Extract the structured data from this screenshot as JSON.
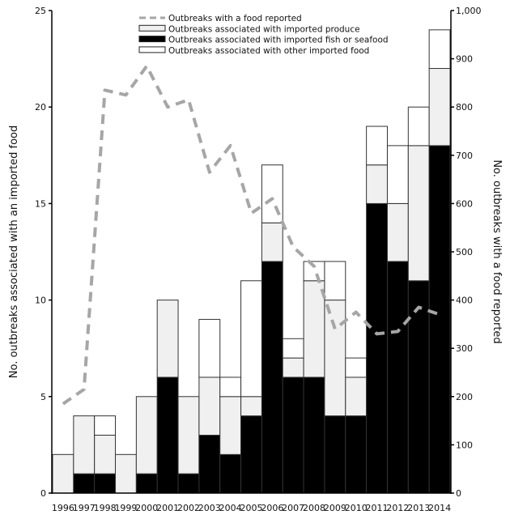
{
  "chart_data": {
    "type": "bar",
    "stacked": true,
    "title": "",
    "xlabel": "",
    "ylabel": "No. outbreaks associated with an imported food",
    "y2label": "No. outbreaks with a food reported",
    "ylim": [
      0,
      25
    ],
    "y2lim": [
      0,
      1000
    ],
    "yticks": [
      "0",
      "5",
      "10",
      "15",
      "20",
      "25"
    ],
    "y2ticks": [
      "0",
      "100",
      "200",
      "300",
      "400",
      "500",
      "600",
      "700",
      "800",
      "900",
      "1,000"
    ],
    "categories": [
      "1996",
      "1997",
      "1998",
      "1999",
      "2000",
      "2001",
      "2002",
      "2003",
      "2004",
      "2005",
      "2006",
      "2007",
      "2008",
      "2009",
      "2010",
      "2011",
      "2012",
      "2013",
      "2014"
    ],
    "series": [
      {
        "name": "Outbreaks associated with imported fish or seafood",
        "axis": "left",
        "kind": "bar",
        "color": "#000000",
        "values": [
          0,
          1,
          1,
          0,
          1,
          6,
          1,
          3,
          2,
          4,
          12,
          6,
          6,
          4,
          4,
          15,
          12,
          11,
          18
        ]
      },
      {
        "name": "Outbreaks associated with imported produce",
        "axis": "left",
        "kind": "bar",
        "color": "#f0f0f0",
        "values": [
          2,
          3,
          2,
          2,
          4,
          4,
          4,
          3,
          3,
          1,
          2,
          1,
          5,
          6,
          2,
          2,
          3,
          7,
          4
        ]
      },
      {
        "name": "Outbreaks associated with other imported food",
        "axis": "left",
        "kind": "bar",
        "color": "#ffffff",
        "values": [
          0,
          0,
          1,
          0,
          0,
          0,
          0,
          3,
          1,
          6,
          3,
          1,
          1,
          2,
          1,
          2,
          3,
          2,
          2
        ]
      },
      {
        "name": "Outbreaks with a food reported",
        "axis": "right",
        "kind": "line",
        "style": "dashed",
        "color": "#a6a6a6",
        "values": [
          185,
          215,
          835,
          825,
          885,
          800,
          815,
          665,
          720,
          580,
          610,
          510,
          470,
          340,
          375,
          330,
          335,
          385,
          370
        ]
      }
    ],
    "legend": {
      "placement": "top-center",
      "entries": [
        {
          "label": "Outbreaks with a food reported",
          "swatch": "dashed-line"
        },
        {
          "label": "Outbreaks associated with imported produce",
          "swatch": "light-gray-box"
        },
        {
          "label": "Outbreaks associated with imported fish or seafood",
          "swatch": "black-box"
        },
        {
          "label": "Outbreaks associated with other imported food",
          "swatch": "white-box"
        }
      ]
    },
    "grid": false
  }
}
